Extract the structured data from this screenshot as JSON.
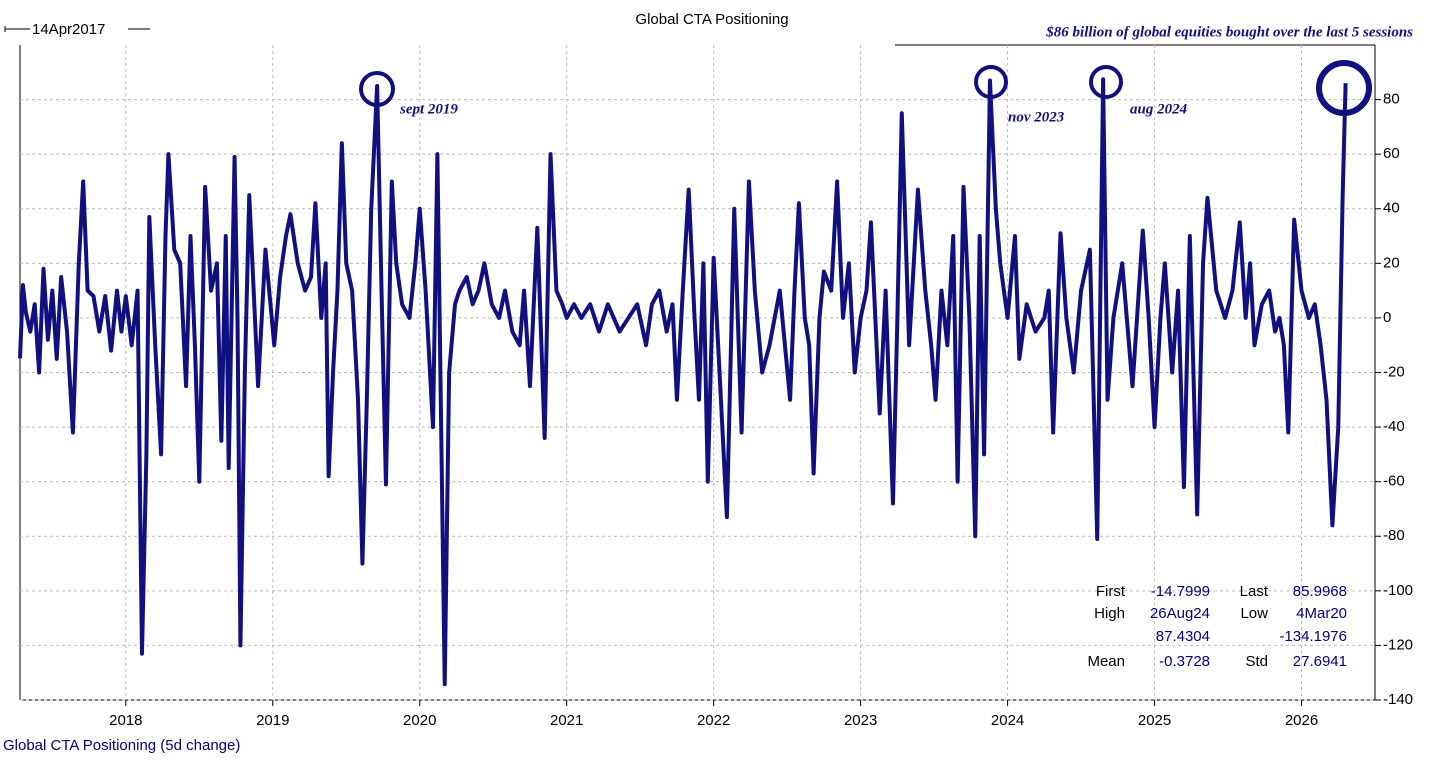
{
  "chart_data": {
    "type": "line",
    "title": "Global CTA Positioning",
    "start_label": "14Apr2017",
    "headline": "$86 billion of global equities bought over the last 5 sessions",
    "x": [
      2017.28,
      2017.3,
      2017.32,
      2017.35,
      2017.38,
      2017.41,
      2017.44,
      2017.47,
      2017.5,
      2017.53,
      2017.56,
      2017.6,
      2017.64,
      2017.68,
      2017.71,
      2017.74,
      2017.78,
      2017.82,
      2017.86,
      2017.9,
      2017.94,
      2017.97,
      2018.0,
      2018.04,
      2018.08,
      2018.11,
      2018.14,
      2018.16,
      2018.2,
      2018.24,
      2018.27,
      2018.29,
      2018.33,
      2018.37,
      2018.41,
      2018.44,
      2018.47,
      2018.5,
      2018.54,
      2018.58,
      2018.62,
      2018.65,
      2018.68,
      2018.7,
      2018.74,
      2018.76,
      2018.78,
      2018.81,
      2018.84,
      2018.87,
      2018.9,
      2018.95,
      2019.01,
      2019.05,
      2019.09,
      2019.12,
      2019.17,
      2019.22,
      2019.26,
      2019.29,
      2019.33,
      2019.36,
      2019.38,
      2019.41,
      2019.44,
      2019.47,
      2019.5,
      2019.54,
      2019.58,
      2019.61,
      2019.64,
      2019.67,
      2019.71,
      2019.74,
      2019.77,
      2019.81,
      2019.84,
      2019.88,
      2019.93,
      2019.97,
      2020.0,
      2020.04,
      2020.09,
      2020.12,
      2020.17,
      2020.2,
      2020.24,
      2020.27,
      2020.32,
      2020.36,
      2020.4,
      2020.44,
      2020.49,
      2020.54,
      2020.58,
      2020.63,
      2020.68,
      2020.71,
      2020.75,
      2020.8,
      2020.85,
      2020.89,
      2020.93,
      2020.97,
      2021.0,
      2021.05,
      2021.1,
      2021.16,
      2021.22,
      2021.28,
      2021.36,
      2021.42,
      2021.48,
      2021.54,
      2021.58,
      2021.63,
      2021.68,
      2021.72,
      2021.75,
      2021.79,
      2021.83,
      2021.87,
      2021.9,
      2021.93,
      2021.96,
      2022.0,
      2022.04,
      2022.09,
      2022.14,
      2022.19,
      2022.24,
      2022.28,
      2022.33,
      2022.38,
      2022.45,
      2022.52,
      2022.55,
      2022.58,
      2022.62,
      2022.65,
      2022.68,
      2022.72,
      2022.75,
      2022.8,
      2022.84,
      2022.88,
      2022.92,
      2022.96,
      2023.0,
      2023.04,
      2023.07,
      2023.13,
      2023.17,
      2023.22,
      2023.25,
      2023.28,
      2023.33,
      2023.39,
      2023.44,
      2023.48,
      2023.51,
      2023.55,
      2023.59,
      2023.63,
      2023.66,
      2023.7,
      2023.74,
      2023.78,
      2023.81,
      2023.84,
      2023.88,
      2023.92,
      2023.95,
      2024.0,
      2024.05,
      2024.08,
      2024.13,
      2024.19,
      2024.25,
      2024.28,
      2024.31,
      2024.36,
      2024.4,
      2024.45,
      2024.5,
      2024.56,
      2024.61,
      2024.65,
      2024.68,
      2024.72,
      2024.78,
      2024.85,
      2024.92,
      2024.96,
      2025.0,
      2025.04,
      2025.07,
      2025.12,
      2025.16,
      2025.2,
      2025.24,
      2025.29,
      2025.33,
      2025.36,
      2025.42,
      2025.48,
      2025.53,
      2025.58,
      2025.62,
      2025.65,
      2025.68,
      2025.73,
      2025.78,
      2025.82,
      2025.85,
      2025.88,
      2025.91,
      2025.95,
      2026.0,
      2026.05,
      2026.09,
      2026.13,
      2026.17,
      2026.21,
      2026.25,
      2026.28,
      2026.3
    ],
    "series": [
      {
        "name": "Global CTA Positioning (5d change)",
        "color": "#101080",
        "values": [
          -14.7999,
          12,
          2,
          -5,
          5,
          -20,
          18,
          -8,
          10,
          -15,
          15,
          -5,
          -42,
          20,
          50,
          10,
          8,
          -5,
          8,
          -12,
          10,
          -5,
          8,
          -10,
          10,
          -123,
          -50,
          37,
          -10,
          -50,
          30,
          60,
          25,
          20,
          -25,
          30,
          -10,
          -60,
          48,
          10,
          20,
          -45,
          30,
          -55,
          59,
          0,
          -120,
          -20,
          45,
          10,
          -25,
          25,
          -10,
          15,
          30,
          38,
          20,
          10,
          15,
          42,
          0,
          20,
          -58,
          -20,
          10,
          64,
          20,
          10,
          -30,
          -90,
          -30,
          40,
          85,
          10,
          -61,
          50,
          20,
          5,
          0,
          20,
          40,
          10,
          -40,
          60,
          -134.1976,
          -20,
          5,
          10,
          15,
          5,
          10,
          20,
          5,
          0,
          10,
          -5,
          -10,
          10,
          -25,
          33,
          -44,
          60,
          10,
          5,
          0,
          5,
          0,
          5,
          -5,
          5,
          -5,
          0,
          5,
          -10,
          5,
          10,
          -5,
          5,
          -30,
          10,
          47,
          0,
          -30,
          20,
          -60,
          22,
          -20,
          -73,
          40,
          -42,
          50,
          10,
          -20,
          -10,
          10,
          -30,
          10,
          42,
          0,
          -10,
          -57,
          0,
          17,
          10,
          50,
          0,
          20,
          -20,
          0,
          10,
          35,
          -35,
          10,
          -68,
          0,
          75,
          -10,
          47,
          10,
          -10,
          -30,
          10,
          -10,
          30,
          -60,
          48,
          0,
          -80,
          30,
          -50,
          87,
          40,
          20,
          0,
          30,
          -15,
          5,
          -5,
          0,
          10,
          -42,
          31,
          0,
          -20,
          10,
          25,
          -81,
          87.4304,
          -30,
          0,
          20,
          -25,
          32,
          0,
          -40,
          0,
          20,
          -20,
          10,
          -62,
          30,
          -72,
          20,
          44,
          10,
          0,
          10,
          35,
          0,
          20,
          -10,
          5,
          10,
          -5,
          0,
          -10,
          -42,
          36,
          10,
          0,
          5,
          -10,
          -30,
          -76,
          -40,
          45,
          85.9968
        ]
      }
    ],
    "xlim": [
      2017.28,
      2026.5
    ],
    "xticks": [
      2018,
      2019,
      2020,
      2021,
      2022,
      2023,
      2024,
      2025,
      2026
    ],
    "ylim": [
      -140,
      100
    ],
    "yticks": [
      -140,
      -120,
      -100,
      -80,
      -60,
      -40,
      -20,
      0,
      20,
      40,
      60,
      80
    ],
    "grid": true,
    "annotations": [
      "sept 2019",
      "nov 2023",
      "aug 2024"
    ],
    "stats": {
      "first_label": "First",
      "first": -14.7999,
      "last_label": "Last",
      "last": 85.9968,
      "high_label": "High",
      "high_date": "26Aug24",
      "high": 87.4304,
      "low_label": "Low",
      "low_date": "4Mar20",
      "low": -134.1976,
      "mean_label": "Mean",
      "mean": -0.3728,
      "std_label": "Std",
      "std": 27.6941
    }
  }
}
